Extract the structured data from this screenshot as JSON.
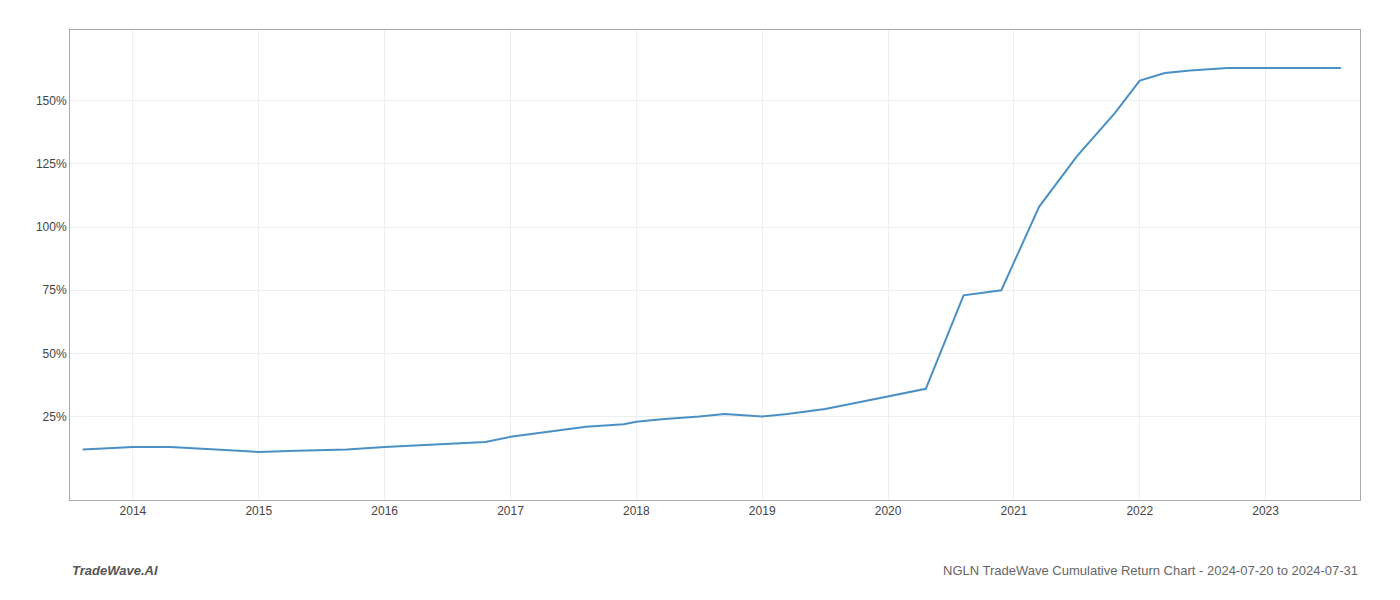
{
  "chart_data": {
    "type": "line",
    "title": "NGLN TradeWave Cumulative Return Chart - 2024-07-20 to 2024-07-31",
    "annotations": [
      "TradeWave.AI"
    ],
    "x": [
      2013.6,
      2014.0,
      2014.3,
      2014.7,
      2015.0,
      2015.3,
      2015.7,
      2016.0,
      2016.4,
      2016.8,
      2017.0,
      2017.3,
      2017.6,
      2017.9,
      2018.0,
      2018.2,
      2018.5,
      2018.7,
      2019.0,
      2019.2,
      2019.5,
      2019.7,
      2019.9,
      2020.1,
      2020.3,
      2020.6,
      2020.9,
      2021.2,
      2021.5,
      2021.8,
      2022.0,
      2022.2,
      2022.4,
      2022.7,
      2023.0,
      2023.3,
      2023.6
    ],
    "values": [
      12,
      13,
      13,
      12,
      11,
      11.5,
      12,
      13,
      14,
      15,
      17,
      19,
      21,
      22,
      23,
      24,
      25,
      26,
      25,
      26,
      28,
      30,
      32,
      34,
      36,
      73,
      75,
      108,
      128,
      145,
      158,
      161,
      162,
      163,
      163,
      163,
      163
    ],
    "color": "#4a90c4",
    "xlim": [
      2013.5,
      2023.75
    ],
    "ylim": [
      -8,
      178
    ],
    "xticks": [
      2014,
      2015,
      2016,
      2017,
      2018,
      2019,
      2020,
      2021,
      2022,
      2023
    ],
    "yticks": [
      {
        "value": 25,
        "label": "25%"
      },
      {
        "value": 50,
        "label": "50%"
      },
      {
        "value": 75,
        "label": "75%"
      },
      {
        "value": 100,
        "label": "100%"
      },
      {
        "value": 125,
        "label": "125%"
      },
      {
        "value": 150,
        "label": "150%"
      }
    ],
    "grid": true
  }
}
